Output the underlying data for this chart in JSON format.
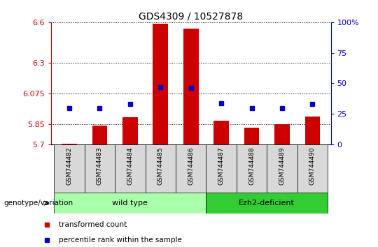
{
  "title": "GDS4309 / 10527878",
  "samples": [
    "GSM744482",
    "GSM744483",
    "GSM744484",
    "GSM744485",
    "GSM744486",
    "GSM744487",
    "GSM744488",
    "GSM744489",
    "GSM744490"
  ],
  "transformed_count": [
    5.705,
    5.84,
    5.9,
    6.59,
    6.555,
    5.875,
    5.825,
    5.85,
    5.905
  ],
  "percentile_rank": [
    30,
    30,
    33,
    47,
    46,
    34,
    30,
    30,
    33
  ],
  "ylim_left": [
    5.7,
    6.6
  ],
  "ylim_right": [
    0,
    100
  ],
  "yticks_left": [
    5.7,
    5.85,
    6.075,
    6.3,
    6.6
  ],
  "yticks_left_labels": [
    "5.7",
    "5.85",
    "6.075",
    "6.3",
    "6.6"
  ],
  "yticks_right": [
    0,
    25,
    50,
    75,
    100
  ],
  "yticks_right_labels": [
    "0",
    "25",
    "50",
    "75",
    "100%"
  ],
  "bar_color": "#cc0000",
  "dot_color": "#0000cc",
  "bar_width": 0.5,
  "groups": [
    {
      "label": "wild type",
      "samples_range": [
        0,
        4
      ],
      "color": "#aaffaa"
    },
    {
      "label": "Ezh2-deficient",
      "samples_range": [
        5,
        8
      ],
      "color": "#33cc33"
    }
  ],
  "genotype_label": "genotype/variation",
  "legend_items": [
    {
      "label": "transformed count",
      "color": "#cc0000"
    },
    {
      "label": "percentile rank within the sample",
      "color": "#0000cc"
    }
  ],
  "grid_color": "black",
  "background_color": "#ffffff",
  "sample_bg_color": "#d8d8d8",
  "title_fontsize": 10,
  "tick_label_fontsize": 8,
  "axis_color_left": "#cc0000",
  "axis_color_right": "#0000cc"
}
